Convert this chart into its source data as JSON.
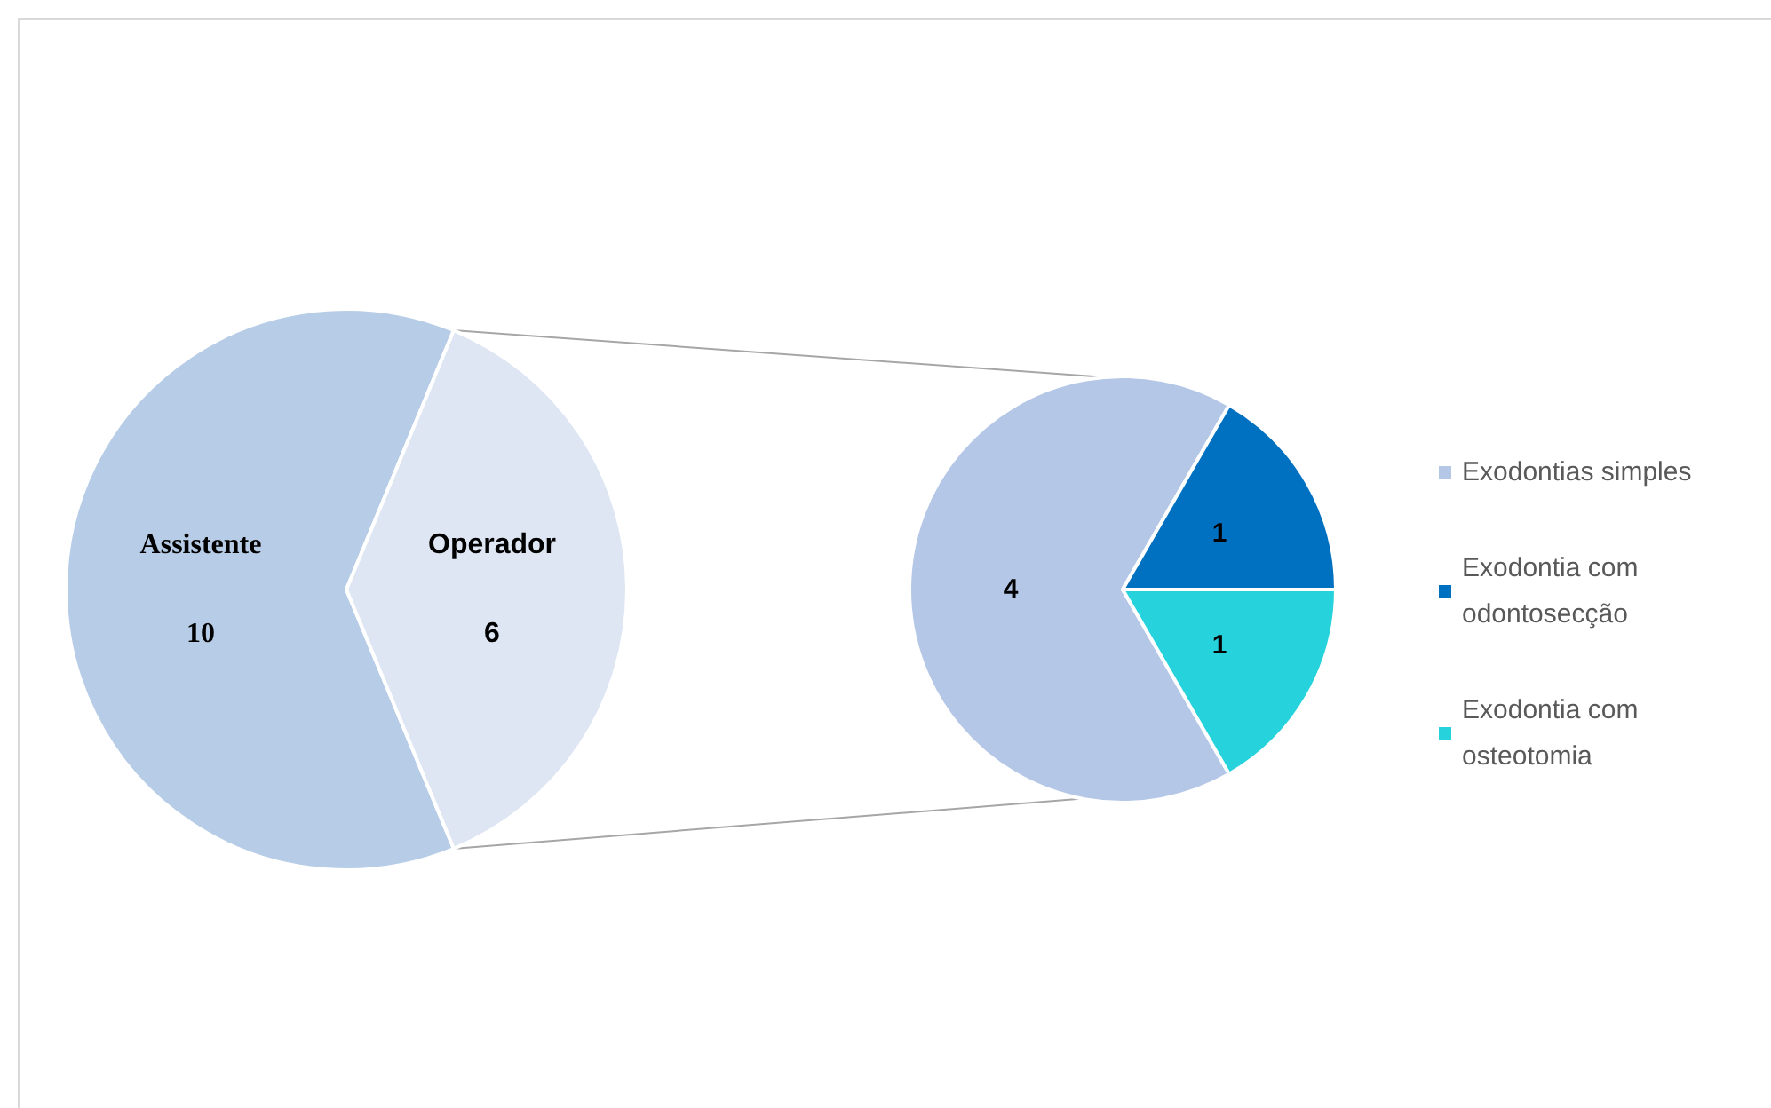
{
  "chart_data": [
    {
      "type": "pie",
      "categories": [
        "Assistente",
        "Operador"
      ],
      "values": [
        10,
        6
      ],
      "colors": [
        "#b7cce6",
        "#dee6f3"
      ],
      "data_labels": true,
      "legend": false
    },
    {
      "type": "pie",
      "categories": [
        "Exodontias simples",
        "Exodontia com odontosecção",
        "Exodontia com osteotomia"
      ],
      "values": [
        4,
        1,
        1
      ],
      "colors": [
        "#b4c7e7",
        "#0070c0",
        "#26d3dc"
      ],
      "data_labels": true,
      "legend": "right"
    }
  ]
}
